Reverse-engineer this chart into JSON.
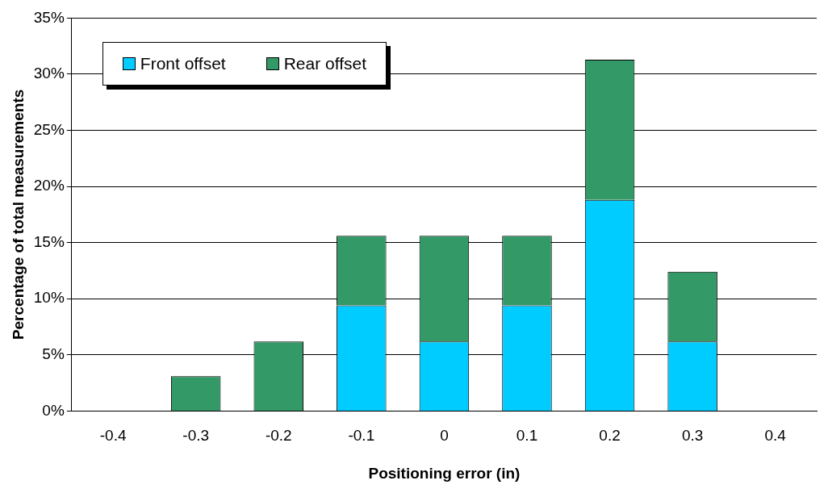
{
  "chart_data": {
    "type": "bar",
    "stacked": true,
    "xlabel": "Positioning error (in)",
    "ylabel": "Percentage of total measurements",
    "categories": [
      "-0.4",
      "-0.3",
      "-0.2",
      "-0.1",
      "0",
      "0.1",
      "0.2",
      "0.3",
      "0.4"
    ],
    "series": [
      {
        "name": "Front offset",
        "color": "#00ccff",
        "values": [
          0,
          0,
          0,
          9.4,
          6.2,
          9.4,
          18.8,
          6.2,
          0
        ]
      },
      {
        "name": "Rear offset",
        "color": "#339966",
        "values": [
          0,
          3.1,
          6.2,
          6.2,
          9.4,
          6.2,
          12.5,
          6.2,
          0
        ]
      }
    ],
    "ylim": [
      0,
      35
    ],
    "yticks": [
      {
        "value": 0,
        "label": "0%"
      },
      {
        "value": 5,
        "label": "5%"
      },
      {
        "value": 10,
        "label": "10%"
      },
      {
        "value": 15,
        "label": "15%"
      },
      {
        "value": 20,
        "label": "20%"
      },
      {
        "value": 25,
        "label": "25%"
      },
      {
        "value": 30,
        "label": "30%"
      },
      {
        "value": 35,
        "label": "35%"
      }
    ],
    "grid": "y",
    "legend": "top left"
  }
}
